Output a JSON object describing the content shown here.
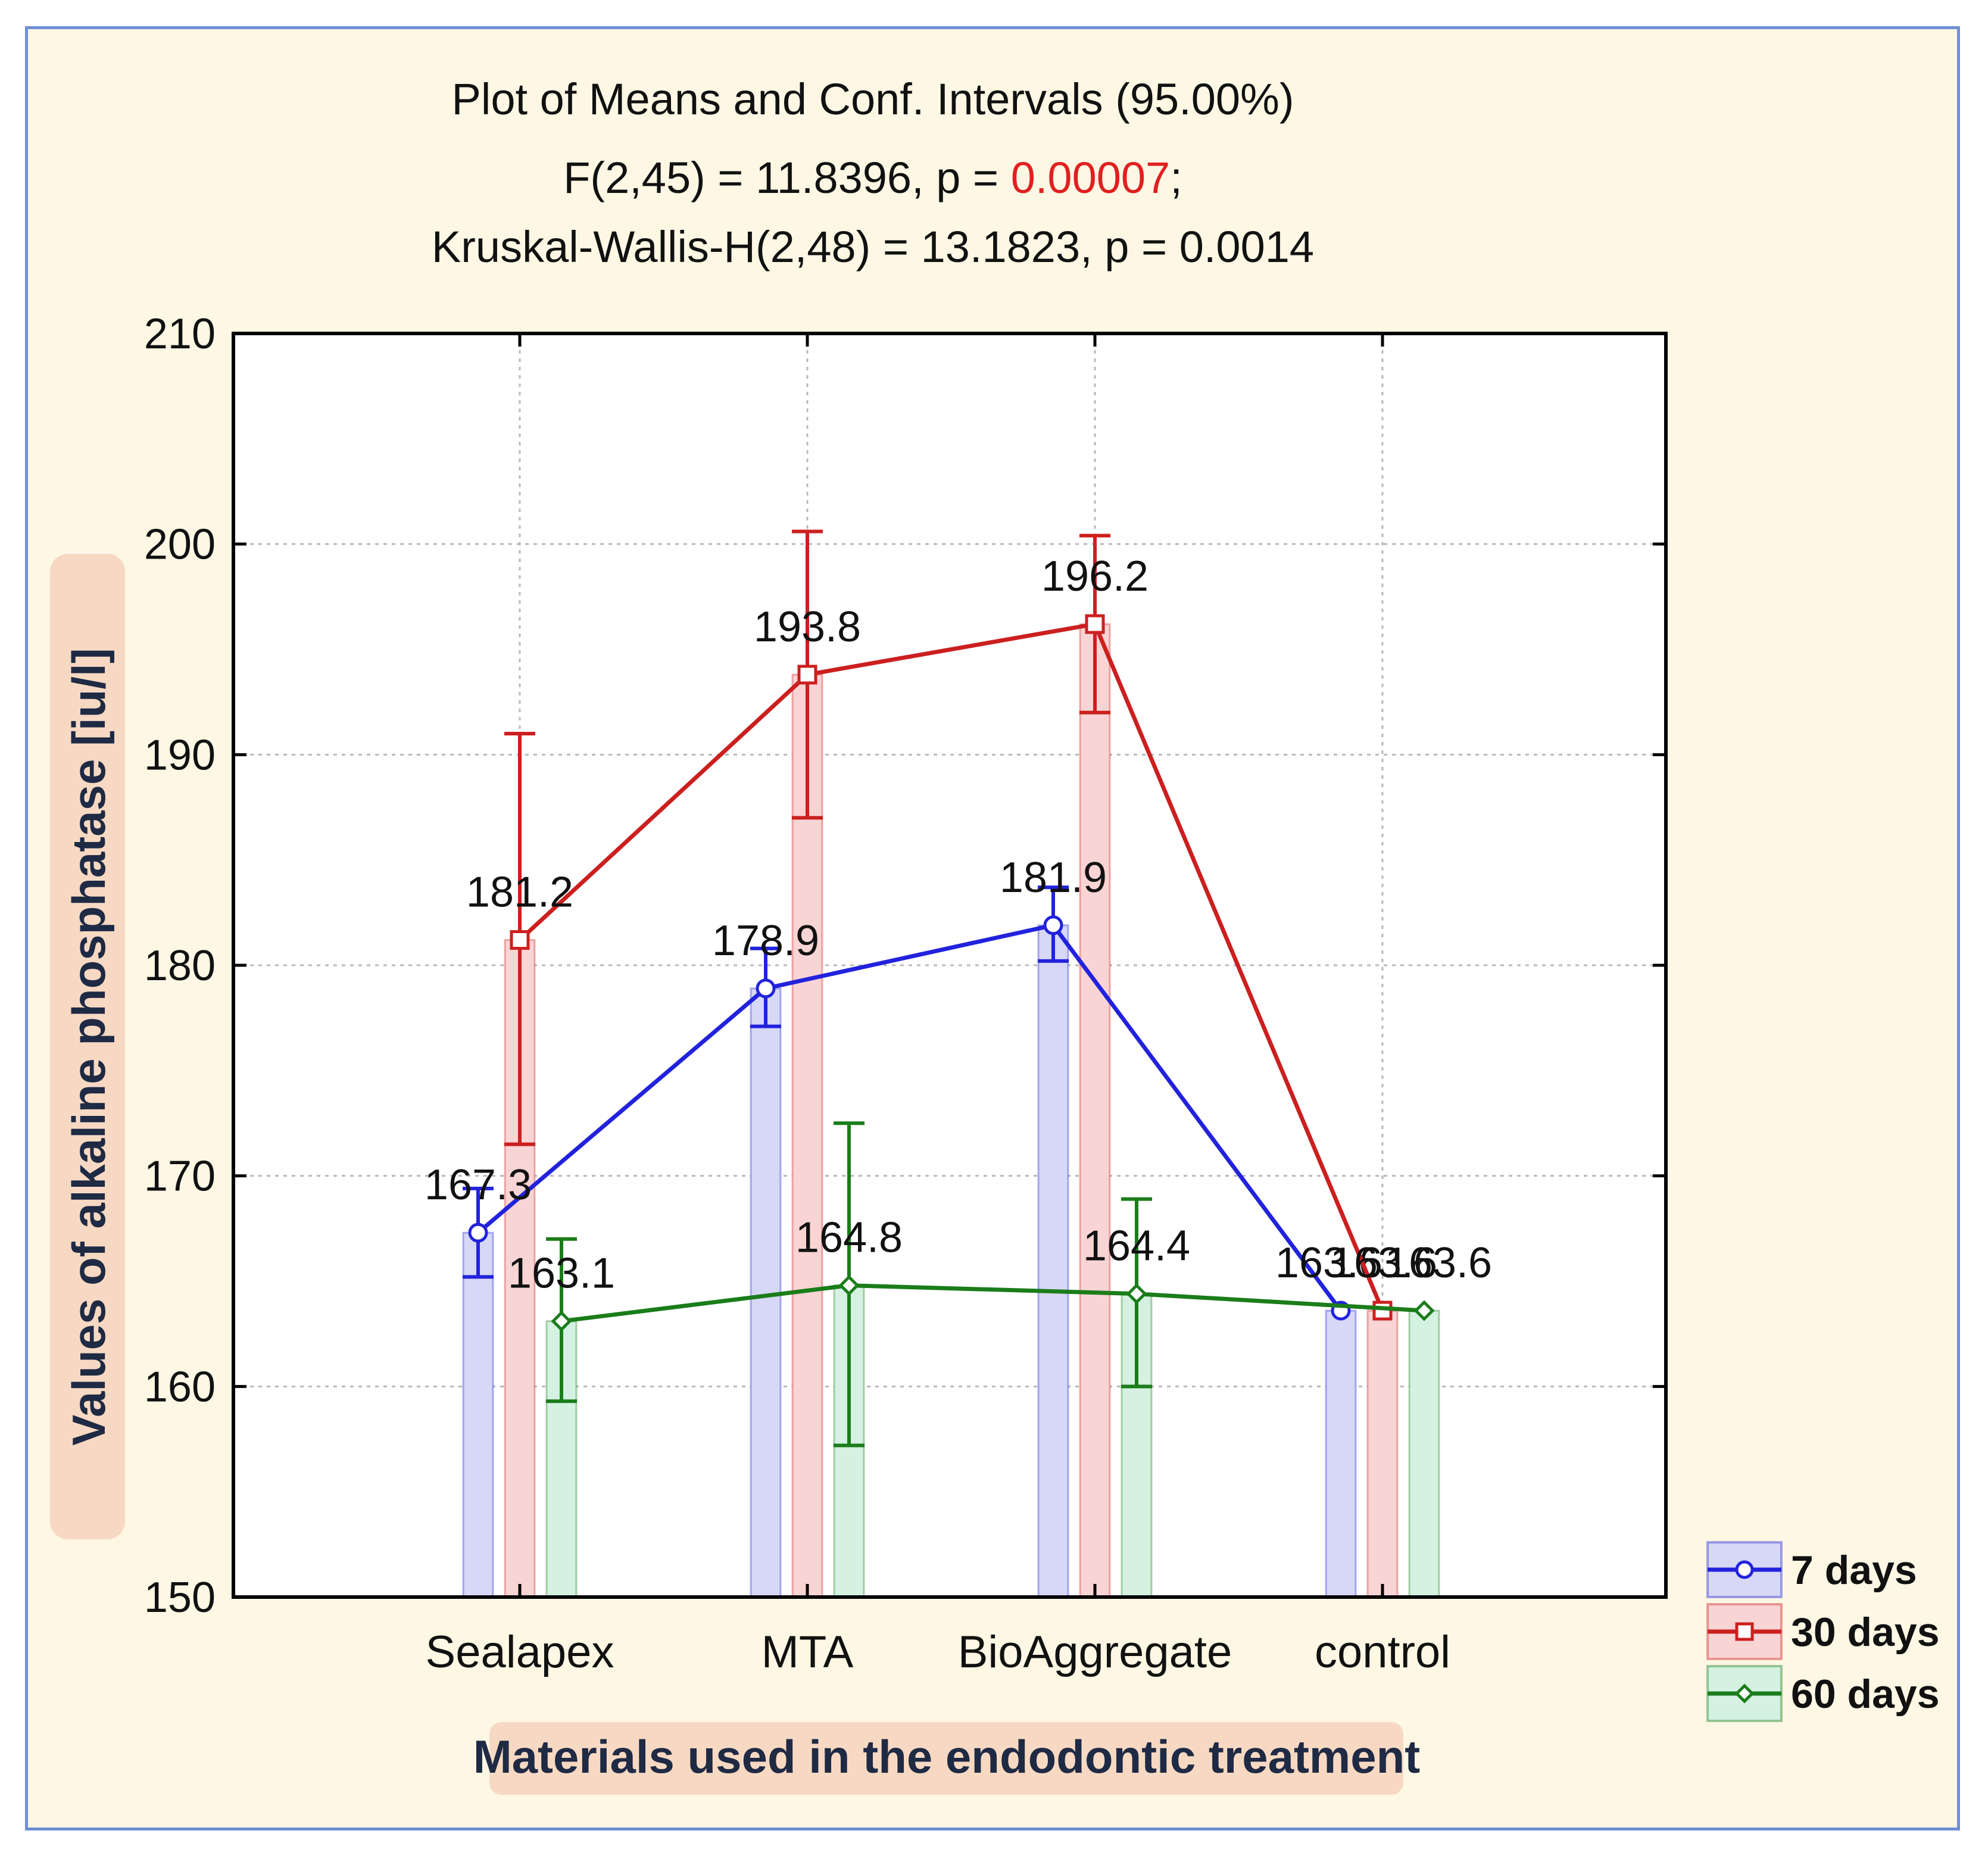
{
  "chart_data": {
    "type": "line",
    "title_lines": [
      "Plot of Means and Conf. Intervals (95.00%)",
      "F(2,45) = 11.8396, p = ",
      "0.00007",
      ";",
      "Kruskal-Wallis-H(2,48) = 13.1823, p = 0.0014"
    ],
    "title": {
      "line1": "Plot of Means and Conf. Intervals (95.00%)",
      "line2_prefix": "F(2,45) = 11.8396, p = ",
      "line2_p": "0.00007",
      "line2_suffix": ";",
      "line3": "Kruskal-Wallis-H(2,48) = 13.1823, p = 0.0014"
    },
    "xlabel": "Materials  used in the endodontic treatment",
    "ylabel": "Values of alkaline phosphatase [iu/l]",
    "ylim": [
      150,
      210
    ],
    "yticks": [
      "150",
      "160",
      "170",
      "180",
      "190",
      "200",
      "210"
    ],
    "categories": [
      "Sealapex",
      "MTA",
      "BioAggregate",
      "control"
    ],
    "grid": true,
    "legend_position": "bottom-right outside",
    "series": [
      {
        "name": "7 days",
        "color": "#2222dd",
        "fill": "#d6d8f6",
        "marker": "circle",
        "values": [
          167.3,
          178.9,
          181.9,
          163.6
        ],
        "ci_low": [
          165.2,
          177.1,
          180.2,
          163.6
        ],
        "ci_high": [
          169.4,
          180.8,
          183.7,
          163.6
        ],
        "labels": [
          "167.3",
          "178.9",
          "181.9",
          "163.6"
        ]
      },
      {
        "name": "30 days",
        "color": "#cc1f1f",
        "fill": "#f9d4d4",
        "marker": "square",
        "values": [
          181.2,
          193.8,
          196.2,
          163.6
        ],
        "ci_low": [
          171.5,
          187.0,
          192.0,
          163.6
        ],
        "ci_high": [
          191.0,
          200.6,
          200.4,
          163.6
        ],
        "labels": [
          "181.2",
          "193.8",
          "196.2",
          "163.6"
        ]
      },
      {
        "name": "60 days",
        "color": "#1a7d1a",
        "fill": "#d4f1e2",
        "marker": "diamond",
        "values": [
          163.1,
          164.8,
          164.4,
          163.6
        ],
        "ci_low": [
          159.3,
          157.2,
          160.0,
          163.6
        ],
        "ci_high": [
          167.0,
          172.5,
          168.9,
          163.6
        ],
        "labels": [
          "163.1",
          "164.8",
          "164.4",
          "163.6"
        ]
      }
    ]
  }
}
